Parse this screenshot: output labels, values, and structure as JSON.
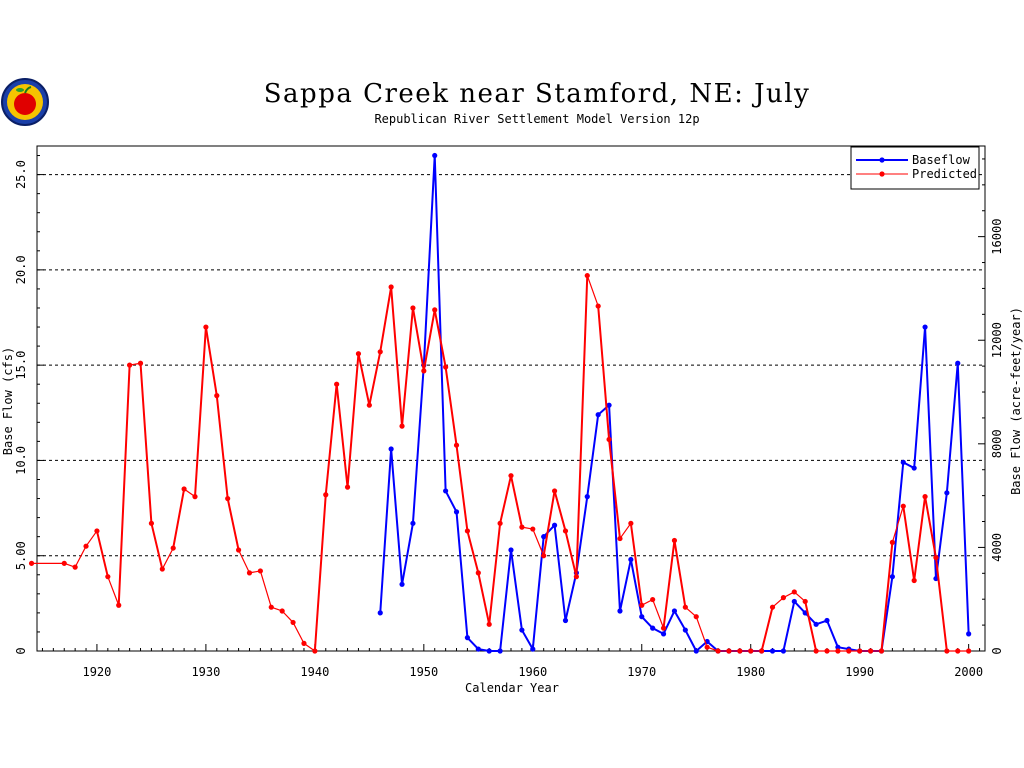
{
  "header": {
    "title": "Sappa Creek near Stamford, NE: July",
    "subtitle": "Republican River Settlement Model Version 12p",
    "logo": "apple-logo-icon"
  },
  "chart_data": {
    "type": "line",
    "title": "Sappa Creek near Stamford, NE: July",
    "subtitle": "Republican River Settlement Model Version 12p",
    "xlabel": "Calendar Year",
    "ylabel": "Base Flow (cfs)",
    "y2label": "Base Flow (acre-feet/year)",
    "xlim": [
      1914.5,
      2001.5
    ],
    "ylim": [
      0,
      26.5
    ],
    "y2lim": [
      0,
      19500
    ],
    "x_ticks": [
      1920,
      1930,
      1940,
      1950,
      1960,
      1970,
      1980,
      1990,
      2000
    ],
    "x_tick_labels": [
      "1920",
      "1930",
      "1940",
      "1950",
      "1960",
      "1970",
      "1980",
      "1990",
      "2000"
    ],
    "y_ticks": [
      0,
      5,
      10,
      15,
      20,
      25
    ],
    "y_tick_labels": [
      "0",
      "5.00",
      "10.0",
      "15.0",
      "20.0",
      "25.0"
    ],
    "y2_ticks": [
      0,
      4000,
      8000,
      12000,
      16000
    ],
    "y2_tick_labels": [
      "0",
      "4000",
      "8000",
      "12000",
      "16000"
    ],
    "grid": "horizontal dashed at 5, 10, 15, 20, 25",
    "legend_position": "top-right",
    "series": [
      {
        "name": "Baseflow",
        "color": "#0000ff",
        "points": [
          [
            1946,
            2.0
          ],
          [
            1947,
            10.6
          ],
          [
            1948,
            3.5
          ],
          [
            1949,
            6.7
          ],
          [
            1950,
            15.0
          ],
          [
            1951,
            26.0
          ],
          [
            1952,
            8.4
          ],
          [
            1953,
            7.3
          ],
          [
            1954,
            0.7
          ],
          [
            1955,
            0.1
          ],
          [
            1956,
            0.0
          ],
          [
            1957,
            0.0
          ],
          [
            1958,
            5.3
          ],
          [
            1959,
            1.1
          ],
          [
            1960,
            0.1
          ],
          [
            1961,
            6.0
          ],
          [
            1962,
            6.6
          ],
          [
            1963,
            1.6
          ],
          [
            1964,
            4.1
          ],
          [
            1965,
            8.1
          ],
          [
            1966,
            12.4
          ],
          [
            1967,
            12.9
          ],
          [
            1968,
            2.1
          ],
          [
            1969,
            4.8
          ],
          [
            1970,
            1.8
          ],
          [
            1971,
            1.2
          ],
          [
            1972,
            0.9
          ],
          [
            1973,
            2.1
          ],
          [
            1974,
            1.1
          ],
          [
            1975,
            0.0
          ],
          [
            1976,
            0.5
          ],
          [
            1977,
            0.0
          ],
          [
            1978,
            0.0
          ],
          [
            1979,
            0.0
          ],
          [
            1980,
            0.0
          ],
          [
            1981,
            0.0
          ],
          [
            1982,
            0.0
          ],
          [
            1983,
            0.0
          ],
          [
            1984,
            2.6
          ],
          [
            1985,
            2.0
          ],
          [
            1986,
            1.4
          ],
          [
            1987,
            1.6
          ],
          [
            1988,
            0.2
          ],
          [
            1989,
            0.1
          ],
          [
            1990,
            0.0
          ],
          [
            1991,
            0.0
          ],
          [
            1992,
            0.0
          ],
          [
            1993,
            3.9
          ],
          [
            1994,
            9.9
          ],
          [
            1995,
            9.6
          ],
          [
            1996,
            17.0
          ],
          [
            1997,
            3.8
          ],
          [
            1998,
            8.3
          ],
          [
            1999,
            15.1
          ],
          [
            2000,
            0.9
          ]
        ]
      },
      {
        "name": "Predicted",
        "color": "#ff0000",
        "points": [
          [
            1914,
            4.6
          ],
          [
            1917,
            4.6
          ],
          [
            1918,
            4.4
          ],
          [
            1919,
            5.5
          ],
          [
            1920,
            6.3
          ],
          [
            1921,
            3.9
          ],
          [
            1922,
            2.4
          ],
          [
            1923,
            15.0
          ],
          [
            1924,
            15.1
          ],
          [
            1925,
            6.7
          ],
          [
            1926,
            4.3
          ],
          [
            1927,
            5.4
          ],
          [
            1928,
            8.5
          ],
          [
            1929,
            8.1
          ],
          [
            1930,
            17.0
          ],
          [
            1931,
            13.4
          ],
          [
            1932,
            8.0
          ],
          [
            1933,
            5.3
          ],
          [
            1934,
            4.1
          ],
          [
            1935,
            4.2
          ],
          [
            1936,
            2.3
          ],
          [
            1937,
            2.1
          ],
          [
            1938,
            1.5
          ],
          [
            1939,
            0.4
          ],
          [
            1940,
            0.0
          ],
          [
            1941,
            8.2
          ],
          [
            1942,
            14.0
          ],
          [
            1943,
            8.6
          ],
          [
            1944,
            15.6
          ],
          [
            1945,
            12.9
          ],
          [
            1946,
            15.7
          ],
          [
            1947,
            19.1
          ],
          [
            1948,
            11.8
          ],
          [
            1949,
            18.0
          ],
          [
            1950,
            14.7
          ],
          [
            1951,
            17.9
          ],
          [
            1952,
            14.9
          ],
          [
            1953,
            10.8
          ],
          [
            1954,
            6.3
          ],
          [
            1955,
            4.1
          ],
          [
            1956,
            1.4
          ],
          [
            1957,
            6.7
          ],
          [
            1958,
            9.2
          ],
          [
            1959,
            6.5
          ],
          [
            1960,
            6.4
          ],
          [
            1961,
            5.0
          ],
          [
            1962,
            8.4
          ],
          [
            1963,
            6.3
          ],
          [
            1964,
            3.9
          ],
          [
            1965,
            19.7
          ],
          [
            1966,
            18.1
          ],
          [
            1967,
            11.1
          ],
          [
            1968,
            5.9
          ],
          [
            1969,
            6.7
          ],
          [
            1970,
            2.4
          ],
          [
            1971,
            2.7
          ],
          [
            1972,
            1.2
          ],
          [
            1973,
            5.8
          ],
          [
            1974,
            2.3
          ],
          [
            1975,
            1.8
          ],
          [
            1976,
            0.2
          ],
          [
            1977,
            0.0
          ],
          [
            1978,
            0.0
          ],
          [
            1979,
            0.0
          ],
          [
            1980,
            0.0
          ],
          [
            1981,
            0.0
          ],
          [
            1982,
            2.3
          ],
          [
            1983,
            2.8
          ],
          [
            1984,
            3.1
          ],
          [
            1985,
            2.6
          ],
          [
            1986,
            0.0
          ],
          [
            1987,
            0.0
          ],
          [
            1988,
            0.0
          ],
          [
            1989,
            0.0
          ],
          [
            1990,
            0.0
          ],
          [
            1991,
            0.0
          ],
          [
            1992,
            0.0
          ],
          [
            1993,
            5.7
          ],
          [
            1994,
            7.6
          ],
          [
            1995,
            3.7
          ],
          [
            1996,
            8.1
          ],
          [
            1997,
            4.9
          ],
          [
            1998,
            0.0
          ],
          [
            1999,
            0.0
          ],
          [
            2000,
            0.0
          ]
        ]
      }
    ]
  }
}
